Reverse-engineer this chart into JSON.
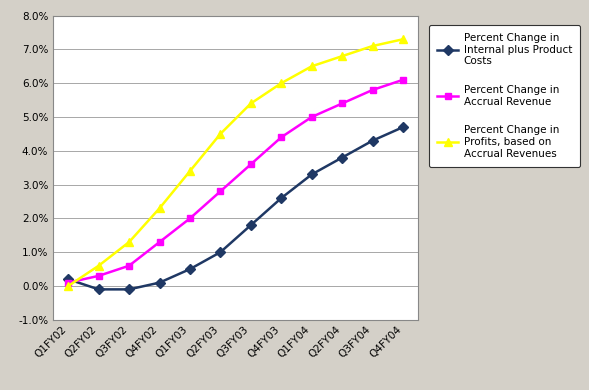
{
  "categories": [
    "Q1FY02",
    "Q2FY02",
    "Q3FY02",
    "Q4FY02",
    "Q1FY03",
    "Q2FY03",
    "Q3FY03",
    "Q4FY03",
    "Q1FY04",
    "Q2FY04",
    "Q3FY04",
    "Q4FY04"
  ],
  "series": [
    {
      "name": "Percent Change in\nInternal plus Product\nCosts",
      "color": "#1f3864",
      "marker": "D",
      "markersize": 5,
      "values": [
        0.002,
        -0.001,
        -0.001,
        0.001,
        0.005,
        0.01,
        0.018,
        0.026,
        0.033,
        0.038,
        0.043,
        0.047
      ]
    },
    {
      "name": "Percent Change in\nAccrual Revenue",
      "color": "#ff00ff",
      "marker": "s",
      "markersize": 5,
      "values": [
        0.001,
        0.003,
        0.006,
        0.013,
        0.02,
        0.028,
        0.036,
        0.044,
        0.05,
        0.054,
        0.058,
        0.061
      ]
    },
    {
      "name": "Percent Change in\nProfits, based on\nAccrual Revenues",
      "color": "#ffff00",
      "marker": "^",
      "markersize": 6,
      "values": [
        0.0,
        0.006,
        0.013,
        0.023,
        0.034,
        0.045,
        0.054,
        0.06,
        0.065,
        0.068,
        0.071,
        0.073
      ]
    }
  ],
  "ylim": [
    -0.01,
    0.08
  ],
  "yticks": [
    -0.01,
    0.0,
    0.01,
    0.02,
    0.03,
    0.04,
    0.05,
    0.06,
    0.07,
    0.08
  ],
  "ytick_labels": [
    "-1.0%",
    "0.0%",
    "1.0%",
    "2.0%",
    "3.0%",
    "4.0%",
    "5.0%",
    "6.0%",
    "7.0%",
    "8.0%"
  ],
  "outer_bg": "#d4d0c8",
  "plot_bg": "#ffffff",
  "grid_color": "#999999",
  "legend_fontsize": 7.5,
  "tick_fontsize": 7.5,
  "linewidth": 1.8
}
